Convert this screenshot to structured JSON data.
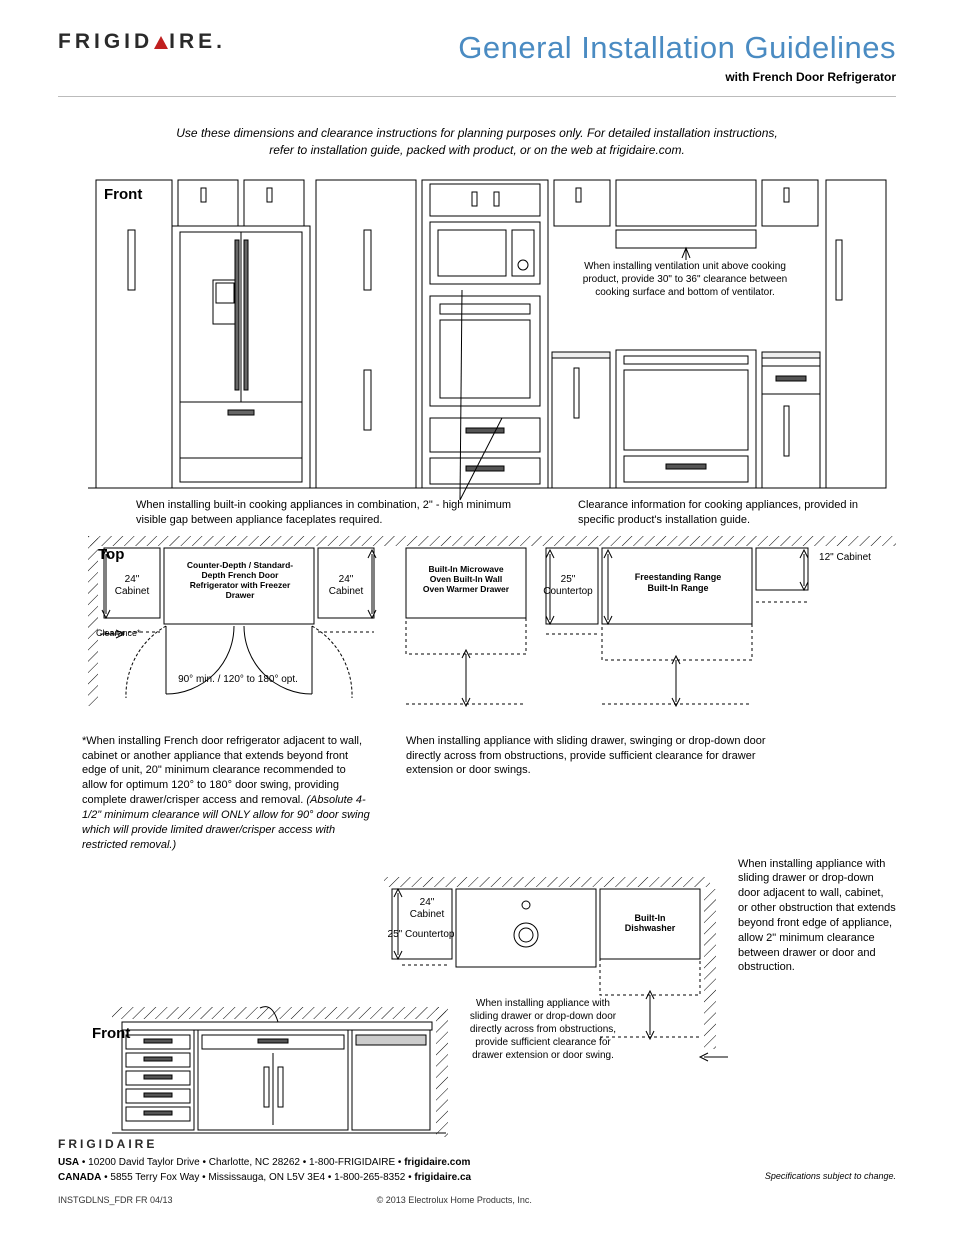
{
  "brand": "FRIGID  IRE",
  "brand_left": "FRIGID",
  "brand_right": "IRE.",
  "title": "General Installation Guidelines",
  "subtitle": "with French Door Refrigerator",
  "intro": "Use these dimensions and clearance instructions for planning purposes only. For detailed installation instructions, refer to installation guide, packed with product, or on the web at frigidaire.com.",
  "labels": {
    "front": "Front",
    "top": "Top"
  },
  "front_notes": {
    "vent": "When installing ventilation unit above cooking product, provide 30\" to 36\" clearance between cooking surface and bottom of ventilator.",
    "builtin": "When installing built-in cooking appliances in combination, 2\" - high minimum visible gap between appliance faceplates required.",
    "cooking": "Clearance information for cooking appliances, provided in specific product's installation guide."
  },
  "top1": {
    "cab24_left": "24\" Cabinet",
    "cab24_right": "24\" Cabinet",
    "fridge": "Counter-Depth / Standard-Depth French Door Refrigerator with Freezer Drawer",
    "clearance": "Clearance*",
    "swing": "90° min. / 120° to 180° opt.",
    "ctop25": "25\" Countertop",
    "builtin_stack": "Built-In Microwave Oven Built-In Wall Oven Warmer Drawer",
    "range": "Freestanding Range Built-In Range",
    "cab12": "12\" Cabinet"
  },
  "top1_notes": {
    "fridge_note": "*When installing French door refrigerator adjacent to wall, cabinet or another appliance that extends beyond front edge of unit, 20\" minimum clearance recommended to allow for optimum 120° to 180° door swing, providing complete drawer/crisper access and removal. (Absolute 4-1/2\" minimum clearance will ONLY allow for 90° door swing which will provide limited drawer/crisper access with restricted removal.)",
    "sliding": "When installing appliance with sliding drawer, swinging or drop-down door directly across from obstructions, provide sufficient clearance for drawer extension or door swings."
  },
  "mid": {
    "cab24": "24\" Cabinet",
    "ctop25": "25\" Countertop",
    "dish": "Built-In Dishwasher",
    "across": "When installing appliance with sliding drawer or drop-down door directly across from obstructions, provide sufficient clearance for drawer extension or door swing.",
    "adjacent": "When installing appliance with sliding drawer or drop-down door adjacent to wall, cabinet, or other obstruction that extends beyond front edge of appliance, allow 2\" minimum clearance between drawer or door and obstruction."
  },
  "footer": {
    "brand": "FRIGIDAIRE",
    "usa_label": "USA",
    "usa": " • 10200 David Taylor Drive • Charlotte, NC 28262 • 1-800-FRIGIDAIRE • ",
    "usa_site": "frigidaire.com",
    "can_label": "CANADA",
    "can": " • 5855 Terry Fox Way • Mississauga, ON L5V 3E4 • 1-800-265-8352 • ",
    "can_site": "frigidaire.ca",
    "spec": "Specifications subject to change.",
    "code": "INSTGDLNS_FDR FR 04/13",
    "copy": "© 2013 Electrolux Home Products, Inc."
  }
}
